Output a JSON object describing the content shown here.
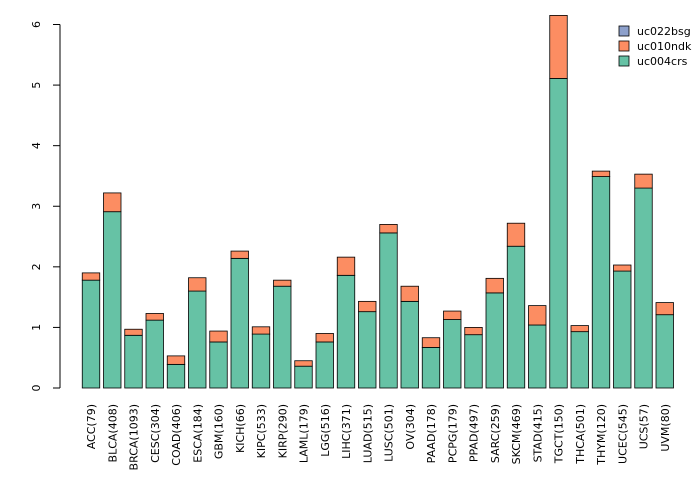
{
  "chart_data": {
    "type": "bar",
    "stacked": true,
    "title": "",
    "xlabel": "",
    "ylabel": "",
    "ylim": [
      0,
      6
    ],
    "yticks": [
      "0",
      "1",
      "2",
      "3",
      "4",
      "5",
      "6"
    ],
    "grid": false,
    "legend_position": "top-right",
    "categories": [
      "ACC(79)",
      "BLCA(408)",
      "BRCA(1093)",
      "CESC(304)",
      "COAD(406)",
      "ESCA(184)",
      "GBM(160)",
      "KICH(66)",
      "KIPC(533)",
      "KIRP(290)",
      "LAML(179)",
      "LGG(516)",
      "LIHC(371)",
      "LUAD(515)",
      "LUSC(501)",
      "OV(304)",
      "PAAD(178)",
      "PCPG(179)",
      "PPAD(497)",
      "SARC(259)",
      "SKCM(469)",
      "STAD(415)",
      "TGCT(150)",
      "THCA(501)",
      "THYM(120)",
      "UCEC(545)",
      "UCS(57)",
      "UVM(80)"
    ],
    "series": [
      {
        "name": "uc004crs",
        "color": "#66c2a5",
        "values": [
          1.78,
          2.91,
          0.87,
          1.12,
          0.39,
          1.6,
          0.76,
          2.14,
          0.89,
          1.68,
          0.36,
          0.76,
          1.86,
          1.26,
          2.56,
          1.43,
          0.67,
          1.13,
          0.88,
          1.57,
          2.34,
          1.04,
          5.11,
          0.93,
          3.49,
          1.93,
          3.3,
          1.21
        ]
      },
      {
        "name": "uc010ndk",
        "color": "#fc8d62",
        "values": [
          0.12,
          0.31,
          0.1,
          0.11,
          0.14,
          0.22,
          0.18,
          0.12,
          0.12,
          0.1,
          0.09,
          0.14,
          0.3,
          0.17,
          0.14,
          0.25,
          0.16,
          0.14,
          0.12,
          0.24,
          0.38,
          0.32,
          1.04,
          0.1,
          0.09,
          0.1,
          0.23,
          0.2
        ]
      },
      {
        "name": "uc022bsg",
        "color": "#8da0cb",
        "values": [
          0,
          0,
          0,
          0,
          0,
          0,
          0,
          0,
          0,
          0,
          0,
          0,
          0,
          0,
          0,
          0,
          0,
          0,
          0,
          0,
          0,
          0,
          0,
          0,
          0,
          0,
          0,
          0
        ]
      }
    ],
    "legend": [
      "uc022bsg",
      "uc010ndk",
      "uc004crs"
    ]
  }
}
